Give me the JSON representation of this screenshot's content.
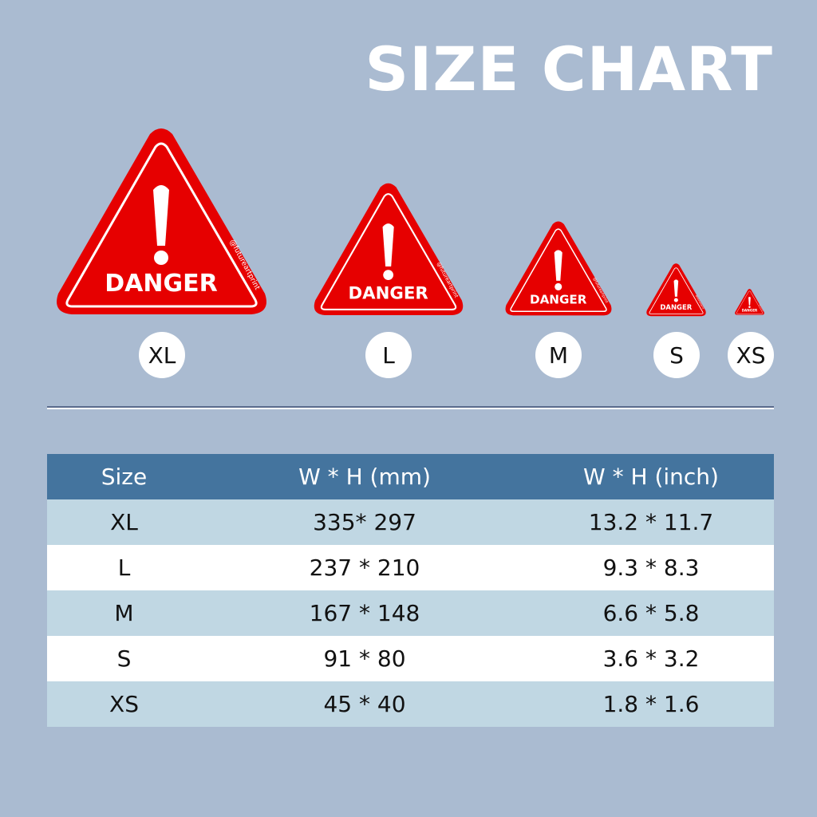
{
  "title": "SIZE CHART",
  "sign": {
    "text": "DANGER",
    "watermark": "@futureartprint",
    "color": "#e60000"
  },
  "sizes": [
    {
      "label": "XL"
    },
    {
      "label": "L"
    },
    {
      "label": "M"
    },
    {
      "label": "S"
    },
    {
      "label": "XS"
    }
  ],
  "table": {
    "headers": [
      "Size",
      "W * H (mm)",
      "W * H (inch)"
    ],
    "rows": [
      [
        "XL",
        "335* 297",
        "13.2 * 11.7"
      ],
      [
        "L",
        "237 * 210",
        "9.3 * 8.3"
      ],
      [
        "M",
        "167 * 148",
        "6.6 * 5.8"
      ],
      [
        "S",
        "91 * 80",
        "3.6 * 3.2"
      ],
      [
        "XS",
        "45 * 40",
        "1.8 * 1.6"
      ]
    ]
  }
}
